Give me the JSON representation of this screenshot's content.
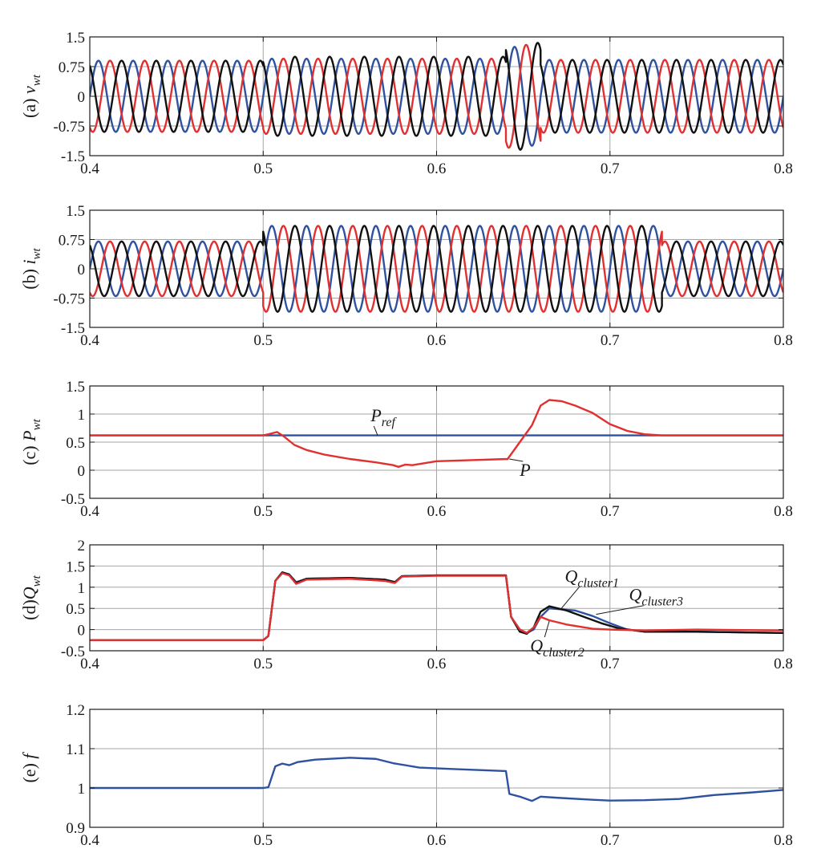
{
  "chart_data": [
    {
      "id": "a",
      "type": "line",
      "ylabel_prefix": "(a) ",
      "ylabel_var": "v",
      "ylabel_sub": "wt",
      "xlim": [
        0.4,
        0.8
      ],
      "ylim": [
        -1.5,
        1.5
      ],
      "xticks": [
        0.4,
        0.5,
        0.6,
        0.7,
        0.8
      ],
      "xtick_labels": [
        "0.4",
        "0.5",
        "0.6",
        "0.7",
        "0.8"
      ],
      "yticks": [
        1.5,
        0.75,
        0,
        -0.75,
        -1.5
      ],
      "ytick_labels": [
        "1.5",
        "0.75",
        "0",
        "-0.75",
        "-1.5"
      ],
      "grid": true,
      "series": [
        {
          "color": "#2f52a0",
          "phase_deg": 0,
          "segments": [
            [
              0.4,
              0.5,
              0.9
            ],
            [
              0.5,
              0.64,
              0.95
            ],
            [
              0.64,
              0.66,
              1.25
            ],
            [
              0.66,
              0.8,
              0.92
            ]
          ]
        },
        {
          "color": "#e03030",
          "phase_deg": -120,
          "segments": [
            [
              0.4,
              0.5,
              0.9
            ],
            [
              0.5,
              0.64,
              0.95
            ],
            [
              0.64,
              0.66,
              1.3
            ],
            [
              0.66,
              0.8,
              0.92
            ]
          ]
        },
        {
          "color": "#111111",
          "phase_deg": 120,
          "segments": [
            [
              0.4,
              0.5,
              0.9
            ],
            [
              0.5,
              0.64,
              1.0
            ],
            [
              0.64,
              0.66,
              1.35
            ],
            [
              0.66,
              0.8,
              0.92
            ]
          ]
        }
      ],
      "frequency_cycles_per_unit": 50,
      "annotations": []
    },
    {
      "id": "b",
      "type": "line",
      "ylabel_prefix": "(b) ",
      "ylabel_var": "i",
      "ylabel_sub": "wt",
      "xlim": [
        0.4,
        0.8
      ],
      "ylim": [
        -1.5,
        1.5
      ],
      "xticks": [
        0.4,
        0.5,
        0.6,
        0.7,
        0.8
      ],
      "xtick_labels": [
        "0.4",
        "0.5",
        "0.6",
        "0.7",
        "0.8"
      ],
      "yticks": [
        1.5,
        0.75,
        0,
        -0.75,
        -1.5
      ],
      "ytick_labels": [
        "1.5",
        "0.75",
        "0",
        "-0.75",
        "-1.5"
      ],
      "grid": true,
      "series": [
        {
          "color": "#2f52a0",
          "phase_deg": 0,
          "segments": [
            [
              0.4,
              0.5,
              0.7
            ],
            [
              0.5,
              0.73,
              1.1
            ],
            [
              0.73,
              0.8,
              0.7
            ]
          ]
        },
        {
          "color": "#e03030",
          "phase_deg": -120,
          "segments": [
            [
              0.4,
              0.5,
              0.7
            ],
            [
              0.5,
              0.73,
              1.1
            ],
            [
              0.73,
              0.8,
              0.7
            ]
          ]
        },
        {
          "color": "#111111",
          "phase_deg": 120,
          "segments": [
            [
              0.4,
              0.5,
              0.7
            ],
            [
              0.5,
              0.73,
              1.1
            ],
            [
              0.73,
              0.8,
              0.7
            ]
          ]
        }
      ],
      "frequency_cycles_per_unit": 50,
      "annotations": []
    },
    {
      "id": "c",
      "type": "line",
      "ylabel_prefix": "(c) ",
      "ylabel_var": "P",
      "ylabel_sub": "wt",
      "xlim": [
        0.4,
        0.8
      ],
      "ylim": [
        -0.5,
        1.5
      ],
      "xticks": [
        0.4,
        0.5,
        0.6,
        0.7,
        0.8
      ],
      "xtick_labels": [
        "0.4",
        "0.5",
        "0.6",
        "0.7",
        "0.8"
      ],
      "yticks": [
        1.5,
        1,
        0.5,
        0,
        -0.5
      ],
      "ytick_labels": [
        "1.5",
        "1",
        "0.5",
        "0",
        "-0.5"
      ],
      "grid": true,
      "series": [
        {
          "name": "Pref",
          "color": "#2f52a0",
          "x": [
            0.4,
            0.8
          ],
          "y": [
            0.62,
            0.62
          ]
        },
        {
          "name": "P",
          "color": "#e03030",
          "x": [
            0.4,
            0.5,
            0.503,
            0.508,
            0.512,
            0.518,
            0.525,
            0.535,
            0.55,
            0.565,
            0.575,
            0.578,
            0.582,
            0.586,
            0.6,
            0.62,
            0.641,
            0.648,
            0.655,
            0.66,
            0.665,
            0.672,
            0.68,
            0.69,
            0.7,
            0.71,
            0.72,
            0.73,
            0.8
          ],
          "y": [
            0.62,
            0.62,
            0.64,
            0.68,
            0.6,
            0.45,
            0.36,
            0.28,
            0.2,
            0.14,
            0.09,
            0.06,
            0.1,
            0.09,
            0.16,
            0.18,
            0.2,
            0.5,
            0.8,
            1.15,
            1.25,
            1.23,
            1.15,
            1.02,
            0.82,
            0.7,
            0.64,
            0.62,
            0.62
          ]
        }
      ],
      "annotations": [
        {
          "var": "P",
          "sub": "ref",
          "x": 0.562,
          "y": 0.87,
          "tx": 0.566,
          "ty": 0.62
        },
        {
          "var": "P",
          "sub": "",
          "x": 0.648,
          "y": -0.1,
          "tx": 0.642,
          "ty": 0.2
        }
      ]
    },
    {
      "id": "d",
      "type": "line",
      "ylabel_prefix": "(d)",
      "ylabel_var": "Q",
      "ylabel_sub": "wt",
      "xlim": [
        0.4,
        0.8
      ],
      "ylim": [
        -0.5,
        2
      ],
      "xticks": [
        0.4,
        0.5,
        0.6,
        0.7,
        0.8
      ],
      "xtick_labels": [
        "0.4",
        "0.5",
        "0.6",
        "0.7",
        "0.8"
      ],
      "yticks": [
        2,
        1.5,
        1,
        0.5,
        0,
        -0.5
      ],
      "ytick_labels": [
        "2",
        "1.5",
        "1",
        "0.5",
        "0",
        "-0.5"
      ],
      "grid": true,
      "series": [
        {
          "name": "Qcluster1",
          "color": "#2f52a0",
          "x": [
            0.4,
            0.5,
            0.503,
            0.507,
            0.511,
            0.515,
            0.519,
            0.525,
            0.55,
            0.57,
            0.576,
            0.58,
            0.6,
            0.62,
            0.64,
            0.643,
            0.648,
            0.652,
            0.656,
            0.66,
            0.665,
            0.68,
            0.69,
            0.7,
            0.71,
            0.72,
            0.75,
            0.8
          ],
          "y": [
            -0.25,
            -0.25,
            -0.15,
            1.15,
            1.35,
            1.3,
            1.12,
            1.2,
            1.22,
            1.18,
            1.12,
            1.26,
            1.28,
            1.28,
            1.28,
            0.3,
            0.0,
            -0.08,
            0.0,
            0.3,
            0.5,
            0.45,
            0.32,
            0.15,
            0.0,
            -0.05,
            -0.05,
            -0.08
          ]
        },
        {
          "name": "Qcluster3",
          "color": "#111111",
          "x": [
            0.4,
            0.5,
            0.503,
            0.507,
            0.511,
            0.515,
            0.519,
            0.525,
            0.55,
            0.57,
            0.576,
            0.58,
            0.6,
            0.62,
            0.64,
            0.643,
            0.648,
            0.652,
            0.656,
            0.66,
            0.665,
            0.675,
            0.685,
            0.695,
            0.705,
            0.72,
            0.75,
            0.8
          ],
          "y": [
            -0.25,
            -0.25,
            -0.15,
            1.15,
            1.35,
            1.3,
            1.1,
            1.2,
            1.22,
            1.18,
            1.12,
            1.26,
            1.28,
            1.28,
            1.28,
            0.3,
            -0.05,
            -0.1,
            0.05,
            0.42,
            0.55,
            0.45,
            0.3,
            0.15,
            0.03,
            -0.05,
            -0.05,
            -0.08
          ]
        },
        {
          "name": "Qcluster2",
          "color": "#e03030",
          "x": [
            0.4,
            0.5,
            0.503,
            0.507,
            0.511,
            0.515,
            0.519,
            0.525,
            0.55,
            0.57,
            0.576,
            0.58,
            0.6,
            0.62,
            0.64,
            0.643,
            0.648,
            0.652,
            0.656,
            0.66,
            0.665,
            0.675,
            0.69,
            0.7,
            0.72,
            0.75,
            0.8
          ],
          "y": [
            -0.25,
            -0.25,
            -0.15,
            1.15,
            1.33,
            1.28,
            1.08,
            1.18,
            1.2,
            1.15,
            1.1,
            1.25,
            1.27,
            1.27,
            1.27,
            0.3,
            0.0,
            -0.08,
            0.05,
            0.3,
            0.22,
            0.12,
            0.02,
            0.0,
            -0.02,
            0.0,
            -0.02
          ]
        }
      ],
      "annotations": [
        {
          "var": "Q",
          "sub": "cluster1",
          "x": 0.674,
          "y": 1.12,
          "tx": 0.672,
          "ty": 0.5
        },
        {
          "var": "Q",
          "sub": "cluster3",
          "x": 0.711,
          "y": 0.68,
          "tx": 0.692,
          "ty": 0.36
        },
        {
          "var": "Q",
          "sub": "cluster2",
          "x": 0.654,
          "y": -0.52,
          "tx": 0.665,
          "ty": 0.2
        }
      ]
    },
    {
      "id": "e",
      "type": "line",
      "ylabel_prefix": "(e) ",
      "ylabel_var": "f",
      "ylabel_sub": "",
      "xlim": [
        0.4,
        0.8
      ],
      "ylim": [
        0.9,
        1.2
      ],
      "xticks": [
        0.4,
        0.5,
        0.6,
        0.7,
        0.8
      ],
      "xtick_labels": [
        "0.4",
        "0.5",
        "0.6",
        "0.7",
        "0.8"
      ],
      "yticks": [
        1.2,
        1.1,
        1,
        0.9
      ],
      "ytick_labels": [
        "1.2",
        "1.1",
        "1",
        "0.9"
      ],
      "grid": true,
      "series": [
        {
          "name": "f",
          "color": "#2f52a0",
          "x": [
            0.4,
            0.5,
            0.503,
            0.507,
            0.511,
            0.515,
            0.52,
            0.53,
            0.55,
            0.565,
            0.575,
            0.59,
            0.61,
            0.64,
            0.642,
            0.648,
            0.655,
            0.66,
            0.67,
            0.69,
            0.7,
            0.72,
            0.74,
            0.76,
            0.78,
            0.8
          ],
          "y": [
            1.0,
            1.0,
            1.002,
            1.055,
            1.062,
            1.058,
            1.066,
            1.072,
            1.077,
            1.074,
            1.063,
            1.052,
            1.048,
            1.043,
            0.985,
            0.978,
            0.967,
            0.978,
            0.975,
            0.97,
            0.968,
            0.969,
            0.972,
            0.982,
            0.988,
            0.995
          ]
        }
      ],
      "annotations": []
    }
  ]
}
